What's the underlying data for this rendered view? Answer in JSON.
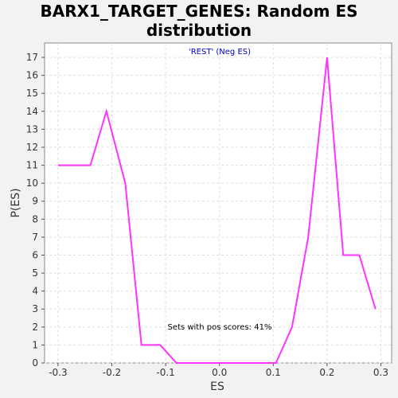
{
  "title_line1": "BARX1_TARGET_GENES: Random ES",
  "title_line2": "distribution",
  "colors": {
    "series": "#ff33ff",
    "subtitle": "#0000cc",
    "plot_bg": "#ffffff",
    "grid": "#dddddd"
  },
  "chart_data": {
    "type": "line",
    "title": "BARX1_TARGET_GENES: Random ES distribution",
    "subtitle": "'REST' (Neg ES)",
    "annotation": "Sets with pos scores: 41%",
    "xlabel": "ES",
    "ylabel": "P(ES)",
    "xlim": [
      -0.325,
      0.32
    ],
    "ylim": [
      0,
      17.8
    ],
    "x_ticks": [
      -0.3,
      -0.2,
      -0.1,
      0.0,
      0.1,
      0.2,
      0.3
    ],
    "x_tick_labels": [
      "-0.3",
      "-0.2",
      "-0.1",
      "0.0",
      "0.1",
      "0.2",
      "0.3"
    ],
    "y_ticks": [
      0,
      1,
      2,
      3,
      4,
      5,
      6,
      7,
      8,
      9,
      10,
      11,
      12,
      13,
      14,
      15,
      16,
      17
    ],
    "grid": true,
    "series": [
      {
        "x": [
          -0.3,
          -0.27,
          -0.24,
          -0.21,
          -0.175,
          -0.145,
          -0.11,
          -0.08,
          -0.05,
          -0.02,
          0.01,
          0.045,
          0.075,
          0.105,
          0.135,
          0.165,
          0.2,
          0.23,
          0.26,
          0.29
        ],
        "y": [
          11,
          11,
          11,
          14,
          10,
          1,
          1,
          0,
          0,
          0,
          0,
          0,
          0,
          0,
          2,
          7,
          17,
          6,
          6,
          3
        ]
      }
    ]
  }
}
